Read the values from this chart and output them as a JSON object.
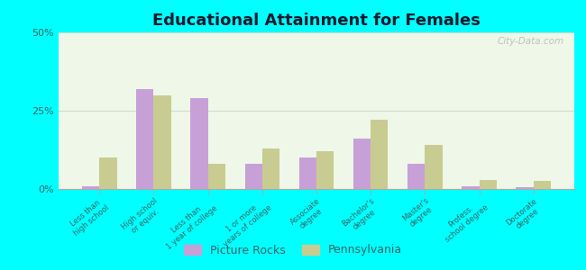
{
  "title": "Educational Attainment for Females",
  "categories": [
    "Less than\nhigh school",
    "High school\nor equiv.",
    "Less than\n1 year of college",
    "1 or more\nyears of college",
    "Associate\ndegree",
    "Bachelor's\ndegree",
    "Master's\ndegree",
    "Profess.\nschool degree",
    "Doctorate\ndegree"
  ],
  "picture_rocks": [
    1.0,
    32.0,
    29.0,
    8.0,
    10.0,
    16.0,
    8.0,
    1.0,
    0.5
  ],
  "pennsylvania": [
    10.0,
    30.0,
    8.0,
    13.0,
    12.0,
    22.0,
    14.0,
    3.0,
    2.5
  ],
  "color_rocks": "#c8a0d8",
  "color_pa": "#c8cc90",
  "background_plot": "#eef7e8",
  "background_fig": "#00ffff",
  "ylim": [
    0,
    50
  ],
  "yticks": [
    0,
    25,
    50
  ],
  "ytick_labels": [
    "0%",
    "25%",
    "50%"
  ],
  "watermark": "City-Data.com",
  "legend_rocks": "Picture Rocks",
  "legend_pa": "Pennsylvania"
}
